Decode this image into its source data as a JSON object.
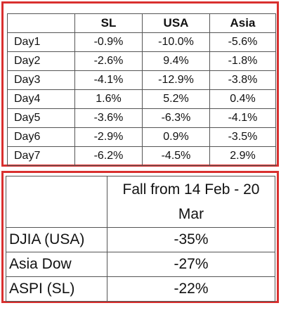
{
  "daily_changes": {
    "columns": [
      "",
      "SL",
      "USA",
      "Asia"
    ],
    "rows": [
      {
        "label": "Day1",
        "values": [
          "-0.9%",
          "-10.0%",
          "-5.6%"
        ]
      },
      {
        "label": "Day2",
        "values": [
          "-2.6%",
          "9.4%",
          "-1.8%"
        ]
      },
      {
        "label": "Day3",
        "values": [
          "-4.1%",
          "-12.9%",
          "-3.8%"
        ]
      },
      {
        "label": "Day4",
        "values": [
          "1.6%",
          "5.2%",
          "0.4%"
        ]
      },
      {
        "label": "Day5",
        "values": [
          "-3.6%",
          "-6.3%",
          "-4.1%"
        ]
      },
      {
        "label": "Day6",
        "values": [
          "-2.9%",
          "0.9%",
          "-3.5%"
        ]
      },
      {
        "label": "Day7",
        "values": [
          "-6.2%",
          "-4.5%",
          "2.9%"
        ]
      }
    ]
  },
  "period_fall": {
    "header": "Fall from 14 Feb - 20 Mar",
    "rows": [
      {
        "label": "DJIA (USA)",
        "value": "-35%"
      },
      {
        "label": "Asia Dow",
        "value": "-27%"
      },
      {
        "label": "ASPI (SL)",
        "value": "-22%"
      }
    ]
  },
  "colors": {
    "frame_border": "#d9302f",
    "grid": "#555555"
  }
}
